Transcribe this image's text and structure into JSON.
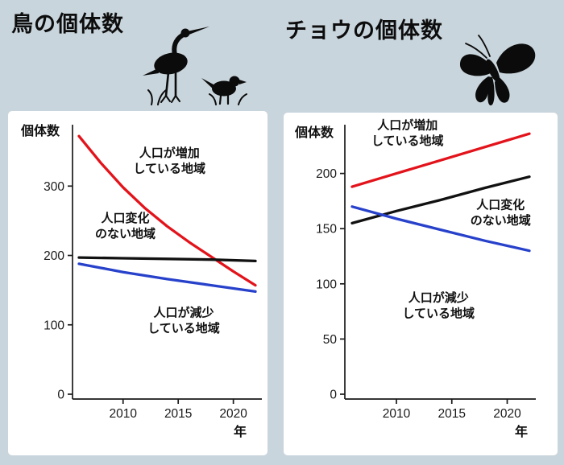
{
  "page": {
    "background_color": "#c9d5dc",
    "panel_color": "#ffffff",
    "text_color": "#111111"
  },
  "icons": [
    {
      "name": "birds-silhouette",
      "depicts": "egret and small bird silhouettes with grass"
    },
    {
      "name": "butterfly-silhouette",
      "depicts": "swallowtail butterfly silhouette"
    }
  ],
  "chart_data": [
    {
      "type": "line",
      "key": "birds",
      "title": "鳥の個体数",
      "ylabel": "個体数",
      "xlabel": "年",
      "xlim": [
        2006,
        2022
      ],
      "ylim": [
        0,
        385
      ],
      "x_ticks": [
        2010,
        2015,
        2020
      ],
      "y_ticks": [
        0,
        100,
        200,
        300
      ],
      "grid": false,
      "legend": "inline-annotations",
      "series": [
        {
          "key": "population-increase",
          "name": "人口が増加している地域",
          "color": "#e3131b",
          "x": [
            2006,
            2008,
            2010,
            2012,
            2014,
            2016,
            2018,
            2020,
            2022
          ],
          "y": [
            372,
            333,
            298,
            268,
            242,
            219,
            198,
            177,
            157
          ]
        },
        {
          "key": "population-stable",
          "name": "人口変化のない地域",
          "color": "#111111",
          "x": [
            2006,
            2010,
            2014,
            2018,
            2022
          ],
          "y": [
            197,
            196,
            195,
            194,
            192
          ]
        },
        {
          "key": "population-decrease",
          "name": "人口が減少している地域",
          "color": "#2741cb",
          "x": [
            2006,
            2010,
            2014,
            2018,
            2022
          ],
          "y": [
            188,
            176,
            166,
            157,
            148
          ]
        }
      ],
      "annotations": [
        {
          "key": "population-increase",
          "lines": [
            "人口が増加",
            "している地域"
          ],
          "x": 2014.2,
          "y": 342
        },
        {
          "key": "population-stable",
          "lines": [
            "人口変化",
            "のない地域"
          ],
          "x": 2010.2,
          "y": 248
        },
        {
          "key": "population-decrease",
          "lines": [
            "人口が減少",
            "している地域"
          ],
          "x": 2015.5,
          "y": 112
        }
      ]
    },
    {
      "type": "line",
      "key": "butterflies",
      "title": "チョウの個体数",
      "ylabel": "個体数",
      "xlabel": "年",
      "xlim": [
        2006,
        2022
      ],
      "ylim": [
        0,
        242
      ],
      "x_ticks": [
        2010,
        2015,
        2020
      ],
      "y_ticks": [
        0,
        50,
        100,
        150,
        200
      ],
      "grid": false,
      "legend": "inline-annotations",
      "series": [
        {
          "key": "population-increase",
          "name": "人口が増加している地域",
          "color": "#e3131b",
          "x": [
            2006,
            2010,
            2014,
            2018,
            2022
          ],
          "y": [
            188,
            200,
            212,
            224,
            236
          ]
        },
        {
          "key": "population-stable",
          "name": "人口変化のない地域",
          "color": "#111111",
          "x": [
            2006,
            2010,
            2014,
            2018,
            2022
          ],
          "y": [
            155,
            166,
            176,
            187,
            197
          ]
        },
        {
          "key": "population-decrease",
          "name": "人口が減少している地域",
          "color": "#2741cb",
          "x": [
            2006,
            2010,
            2014,
            2018,
            2022
          ],
          "y": [
            170,
            159,
            149,
            139,
            130
          ]
        }
      ],
      "annotations": [
        {
          "key": "population-increase",
          "lines": [
            "人口が増加",
            "している地域"
          ],
          "x": 2011,
          "y": 240
        },
        {
          "key": "population-stable",
          "lines": [
            "人口変化",
            "のない地域"
          ],
          "x": 2019.4,
          "y": 168
        },
        {
          "key": "population-decrease",
          "lines": [
            "人口が減少",
            "している地域"
          ],
          "x": 2013.8,
          "y": 84
        }
      ]
    }
  ]
}
